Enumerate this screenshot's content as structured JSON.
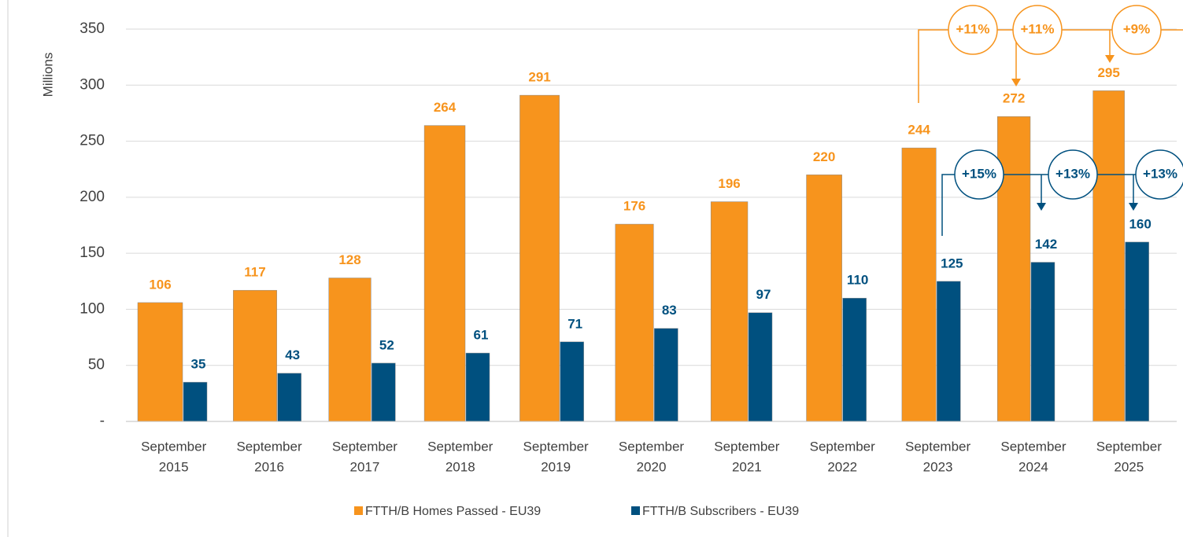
{
  "chart_data": {
    "type": "bar",
    "y_label": "Millions",
    "categories": [
      [
        "September",
        "2015"
      ],
      [
        "September",
        "2016"
      ],
      [
        "September",
        "2017"
      ],
      [
        "September",
        "2018"
      ],
      [
        "September",
        "2019"
      ],
      [
        "September",
        "2020"
      ],
      [
        "September",
        "2021"
      ],
      [
        "September",
        "2022"
      ],
      [
        "September",
        "2023"
      ],
      [
        "September",
        "2024"
      ],
      [
        "September",
        "2025"
      ]
    ],
    "series": [
      {
        "name": "FTTH/B Homes Passed - EU39",
        "color": "#f7941d",
        "values": [
          106,
          117,
          128,
          264,
          291,
          176,
          196,
          220,
          244,
          272,
          295
        ]
      },
      {
        "name": "FTTH/B Subscribers - EU39",
        "color": "#00507f",
        "values": [
          35,
          43,
          52,
          61,
          71,
          83,
          97,
          110,
          125,
          142,
          160
        ]
      }
    ],
    "ylim": [
      0,
      350
    ],
    "yticks": [
      {
        "value": 0,
        "label": "-"
      },
      50,
      100,
      150,
      200,
      250,
      300,
      350
    ],
    "grid": true,
    "legend": "bottom",
    "growth_annotations": [
      {
        "series": 0,
        "labels": [
          "+11%",
          "+11%",
          "+9%"
        ]
      },
      {
        "series": 1,
        "labels": [
          "+15%",
          "+13%",
          "+13%"
        ]
      }
    ]
  }
}
